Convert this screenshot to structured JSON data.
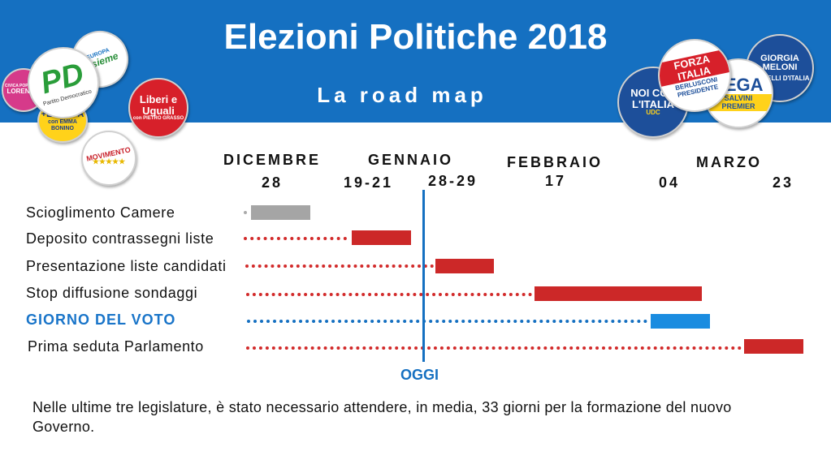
{
  "header": {
    "title": "Elezioni Politiche 2018",
    "subtitle": "La road map"
  },
  "logos": {
    "pd": {
      "main": "PD",
      "sub": "Partito Democratico"
    },
    "insieme": {
      "main": "Insieme",
      "sub": "EUROPA"
    },
    "lorenzin": {
      "main": "LORENZIN",
      "sub": "CIVICA POPOLARE"
    },
    "europa": {
      "main": "+EUROPA",
      "sub": "con EMMA BONINO"
    },
    "leu": {
      "main": "Liberi e Uguali",
      "sub": "con PIETRO GRASSO"
    },
    "m5s": {
      "main": "MOVIMENTO",
      "sub": "★★★★★"
    },
    "noi": {
      "main": "NOI CON L'ITALIA",
      "sub": "UDC"
    },
    "fi": {
      "main": "FORZA ITALIA",
      "sub": "BERLUSCONI PRESIDENTE"
    },
    "lega": {
      "main": "LEGA",
      "sub": "SALVINI PREMIER"
    },
    "fdi": {
      "main": "GIORGIA MELONI",
      "sub": "FRATELLI D'ITALIA"
    }
  },
  "timeline": {
    "months": [
      "DICEMBRE",
      "GENNAIO",
      "FEBBRAIO",
      "MARZO"
    ],
    "dates": [
      "28",
      "19-21",
      "28-29",
      "17",
      "04",
      "23"
    ],
    "today_label": "OGGI",
    "rows": [
      {
        "label": "Scioglimento Camere",
        "color": "#a5a5a5"
      },
      {
        "label": "Deposito contrassegni liste",
        "color": "#cc2828"
      },
      {
        "label": "Presentazione liste candidati",
        "color": "#cc2828"
      },
      {
        "label": "Stop diffusione sondaggi",
        "color": "#cc2828"
      },
      {
        "label": "GIORNO DEL VOTO",
        "color": "#1a8ce0"
      },
      {
        "label": "Prima seduta Parlamento",
        "color": "#cc2828"
      }
    ]
  },
  "note": "Nelle ultime tre legislature, è stato necessario attendere, in media, 33 giorni per la formazione del nuovo Governo."
}
